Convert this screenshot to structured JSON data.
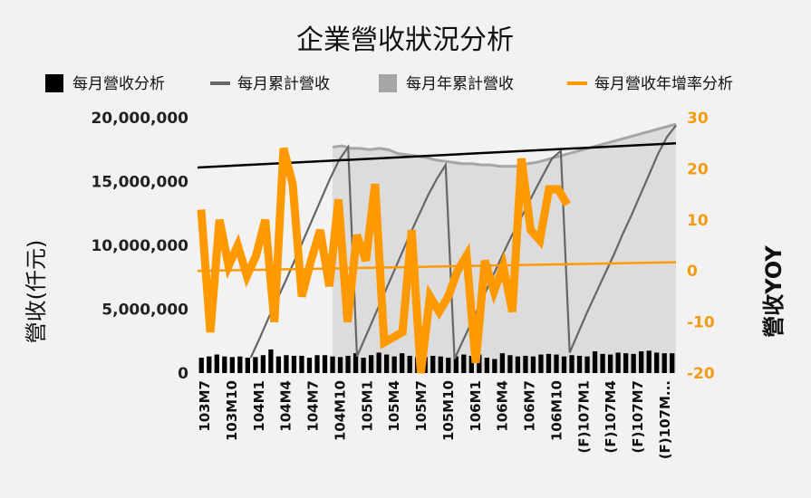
{
  "chart_data": {
    "type": "bar",
    "title": "企業營收狀況分析",
    "ylabel": "營收(仟元)",
    "y2label": "營收YOY",
    "ylim": [
      0,
      20000000
    ],
    "y2lim": [
      -20,
      30
    ],
    "y_ticks": [
      "0",
      "5,000,000",
      "10,000,000",
      "15,000,000",
      "20,000,000"
    ],
    "y2_ticks": [
      "-20",
      "-10",
      "0",
      "10",
      "20",
      "30"
    ],
    "x_tick_labels": [
      "103M7",
      "103M10",
      "104M1",
      "104M4",
      "104M7",
      "104M10",
      "105M1",
      "105M4",
      "105M7",
      "105M10",
      "106M1",
      "106M4",
      "106M7",
      "106M10",
      "(F)107M1",
      "(F)107M4",
      "(F)107M7",
      "(F)107M..."
    ],
    "legend": [
      {
        "label": "每月營收分析",
        "color": "#000000"
      },
      {
        "label": "每月累計營收",
        "color": "#666666"
      },
      {
        "label": "每月年累計營收",
        "color": "#a6a6a6"
      },
      {
        "label": "每月營收年增率分析",
        "color": "#ff9900"
      }
    ],
    "monthly_revenue": [
      1200000,
      1300000,
      1450000,
      1300000,
      1250000,
      1300000,
      1200000,
      1250000,
      1400000,
      1850000,
      1300000,
      1400000,
      1350000,
      1350000,
      1200000,
      1400000,
      1400000,
      1300000,
      1250000,
      1350000,
      1550000,
      1200000,
      1400000,
      1600000,
      1450000,
      1300000,
      1550000,
      1350000,
      1250000,
      1250000,
      1350000,
      1300000,
      1200000,
      1300000,
      1450000,
      1350000,
      1450000,
      1200000,
      1100000,
      1550000,
      1400000,
      1300000,
      1350000,
      1300000,
      1450000,
      1500000,
      1450000,
      1300000,
      1400000,
      1350000,
      1300000,
      1700000,
      1500000,
      1450000,
      1600000,
      1550000,
      1500000,
      1700000,
      1750000,
      1600000,
      1550000,
      1550000
    ],
    "cumulative_revenue": [
      null,
      null,
      null,
      null,
      null,
      null,
      1200000,
      2700000,
      4300000,
      5800000,
      7300000,
      8900000,
      10500000,
      12100000,
      13700000,
      15300000,
      16700000,
      17700000,
      1300000,
      2900000,
      4500000,
      6100000,
      7700000,
      9300000,
      10900000,
      12400000,
      13900000,
      15200000,
      16300000,
      1100000,
      2600000,
      4100000,
      5600000,
      7100000,
      8600000,
      10100000,
      11500000,
      12800000,
      14200000,
      15500000,
      16800000,
      17400000,
      1600000,
      3200000,
      4800000,
      6300000,
      7800000,
      9300000,
      10900000,
      12400000,
      14000000,
      15600000,
      17200000,
      18500000,
      19400000
    ],
    "annual_cumulative_revenue": [
      17700000,
      17800000,
      17600000,
      17600000,
      17500000,
      17600000,
      17500000,
      17200000,
      17100000,
      17000000,
      16900000,
      16700000,
      16600000,
      16500000,
      16400000,
      16400000,
      16300000,
      16300000,
      16200000,
      16200000,
      16200000,
      16400000,
      16500000,
      16700000,
      16900000,
      17100000,
      17300000,
      17500000,
      17700000,
      17900000,
      18100000,
      18300000,
      18500000,
      18700000,
      18900000,
      19100000,
      19300000,
      19500000
    ],
    "yoy_percent": [
      12,
      -12,
      10,
      1,
      5,
      -1,
      3,
      10,
      -10,
      24,
      17,
      -5,
      2,
      8,
      -3,
      14,
      -10,
      7,
      2,
      17,
      -14,
      -13,
      -12,
      8,
      -20,
      -5,
      -8,
      -5,
      0,
      3,
      -18,
      2,
      -4,
      1,
      -8,
      22,
      8,
      6,
      16,
      16,
      13
    ],
    "revenue_trend_line": [
      16100000,
      18000000
    ],
    "yoy_trend_line": [
      0,
      1.7
    ]
  }
}
